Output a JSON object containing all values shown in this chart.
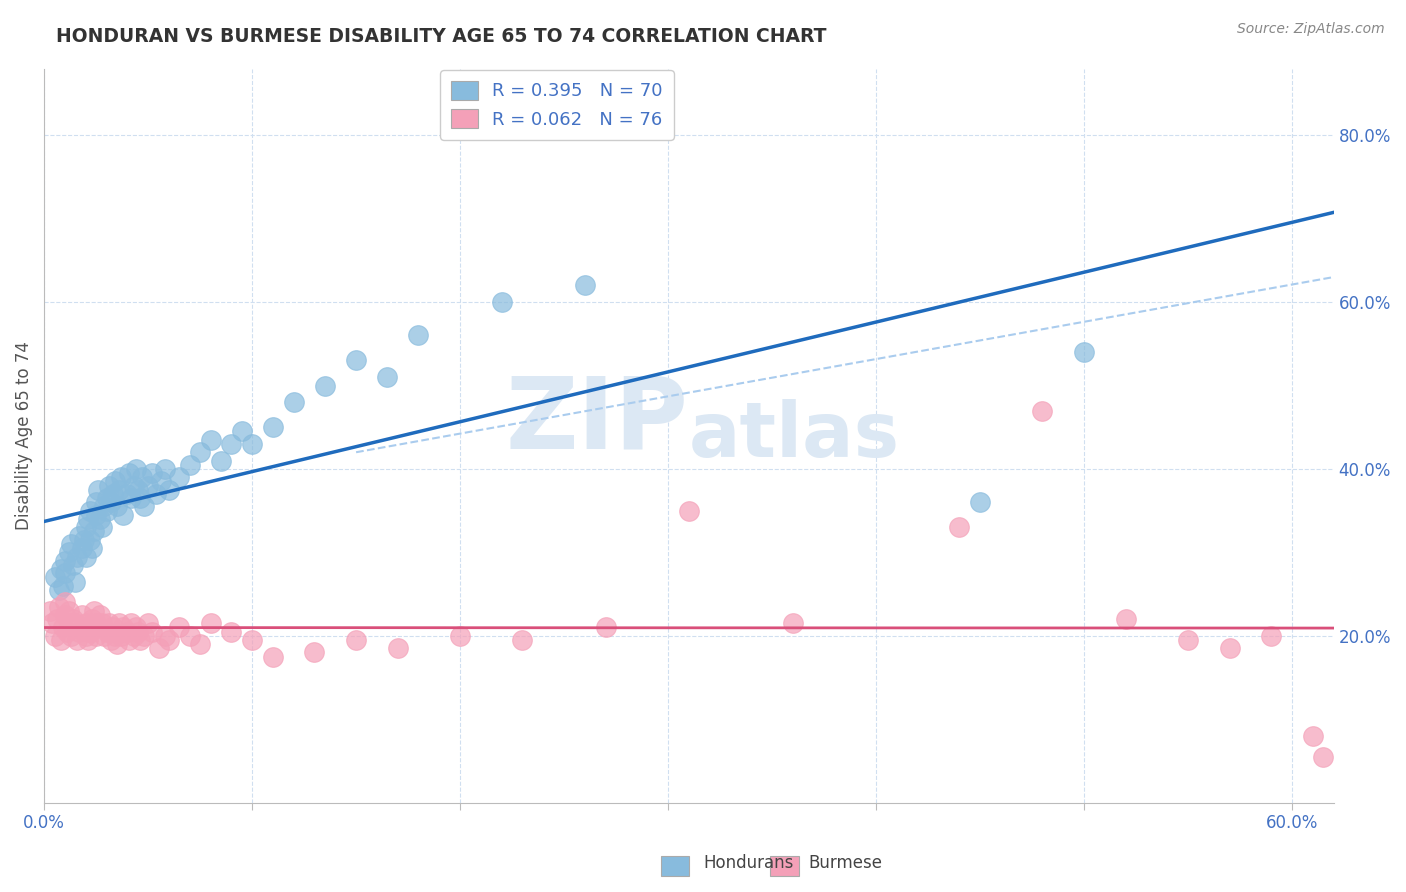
{
  "title": "HONDURAN VS BURMESE DISABILITY AGE 65 TO 74 CORRELATION CHART",
  "source_text": "Source: ZipAtlas.com",
  "ylabel": "Disability Age 65 to 74",
  "xlim": [
    0.0,
    0.62
  ],
  "ylim": [
    0.0,
    0.88
  ],
  "xticks": [
    0.0,
    0.1,
    0.2,
    0.3,
    0.4,
    0.5,
    0.6
  ],
  "yticks": [
    0.2,
    0.4,
    0.6,
    0.8
  ],
  "legend_r1": "R = 0.395",
  "legend_n1": "N = 70",
  "legend_r2": "R = 0.062",
  "legend_n2": "N = 76",
  "honduran_color": "#88bbdd",
  "burmese_color": "#f4a0b8",
  "trend_honduran_color": "#1f6bbd",
  "trend_burmese_color": "#d94f7a",
  "axis_label_color": "#4472C4",
  "grid_color": "#d0dff0",
  "background_color": "#ffffff",
  "watermark_color": "#dce8f4",
  "hondurans_scatter_x": [
    0.005,
    0.007,
    0.008,
    0.009,
    0.01,
    0.01,
    0.012,
    0.013,
    0.014,
    0.015,
    0.016,
    0.017,
    0.018,
    0.019,
    0.02,
    0.02,
    0.021,
    0.022,
    0.022,
    0.023,
    0.024,
    0.025,
    0.025,
    0.026,
    0.027,
    0.028,
    0.029,
    0.03,
    0.03,
    0.031,
    0.032,
    0.033,
    0.034,
    0.035,
    0.036,
    0.037,
    0.038,
    0.04,
    0.041,
    0.042,
    0.043,
    0.044,
    0.045,
    0.046,
    0.047,
    0.048,
    0.05,
    0.052,
    0.054,
    0.056,
    0.058,
    0.06,
    0.065,
    0.07,
    0.075,
    0.08,
    0.085,
    0.09,
    0.095,
    0.1,
    0.11,
    0.12,
    0.135,
    0.15,
    0.165,
    0.18,
    0.22,
    0.26,
    0.45,
    0.5
  ],
  "hondurans_scatter_y": [
    0.27,
    0.255,
    0.28,
    0.26,
    0.29,
    0.275,
    0.3,
    0.31,
    0.285,
    0.265,
    0.295,
    0.32,
    0.305,
    0.315,
    0.33,
    0.295,
    0.34,
    0.315,
    0.35,
    0.305,
    0.325,
    0.345,
    0.36,
    0.375,
    0.34,
    0.33,
    0.355,
    0.365,
    0.35,
    0.38,
    0.36,
    0.37,
    0.385,
    0.355,
    0.375,
    0.39,
    0.345,
    0.37,
    0.395,
    0.365,
    0.38,
    0.4,
    0.375,
    0.365,
    0.39,
    0.355,
    0.38,
    0.395,
    0.37,
    0.385,
    0.4,
    0.375,
    0.39,
    0.405,
    0.42,
    0.435,
    0.41,
    0.43,
    0.445,
    0.43,
    0.45,
    0.48,
    0.5,
    0.53,
    0.51,
    0.56,
    0.6,
    0.62,
    0.36,
    0.54
  ],
  "burmese_scatter_x": [
    0.003,
    0.004,
    0.005,
    0.006,
    0.007,
    0.008,
    0.009,
    0.01,
    0.01,
    0.011,
    0.012,
    0.012,
    0.013,
    0.014,
    0.015,
    0.016,
    0.017,
    0.018,
    0.019,
    0.02,
    0.02,
    0.021,
    0.022,
    0.023,
    0.024,
    0.025,
    0.025,
    0.026,
    0.027,
    0.028,
    0.029,
    0.03,
    0.031,
    0.032,
    0.033,
    0.034,
    0.035,
    0.036,
    0.037,
    0.038,
    0.04,
    0.041,
    0.042,
    0.043,
    0.044,
    0.045,
    0.046,
    0.048,
    0.05,
    0.052,
    0.055,
    0.058,
    0.06,
    0.065,
    0.07,
    0.075,
    0.08,
    0.09,
    0.1,
    0.11,
    0.13,
    0.15,
    0.17,
    0.2,
    0.23,
    0.27,
    0.31,
    0.36,
    0.44,
    0.48,
    0.52,
    0.55,
    0.57,
    0.59,
    0.61,
    0.615
  ],
  "burmese_scatter_y": [
    0.23,
    0.215,
    0.2,
    0.22,
    0.235,
    0.195,
    0.21,
    0.225,
    0.24,
    0.205,
    0.215,
    0.23,
    0.2,
    0.22,
    0.215,
    0.195,
    0.205,
    0.225,
    0.21,
    0.2,
    0.215,
    0.195,
    0.205,
    0.22,
    0.23,
    0.215,
    0.2,
    0.21,
    0.225,
    0.215,
    0.2,
    0.205,
    0.215,
    0.195,
    0.21,
    0.2,
    0.19,
    0.215,
    0.2,
    0.21,
    0.205,
    0.195,
    0.215,
    0.2,
    0.21,
    0.205,
    0.195,
    0.2,
    0.215,
    0.205,
    0.185,
    0.2,
    0.195,
    0.21,
    0.2,
    0.19,
    0.215,
    0.205,
    0.195,
    0.175,
    0.18,
    0.195,
    0.185,
    0.2,
    0.195,
    0.21,
    0.35,
    0.215,
    0.33,
    0.47,
    0.22,
    0.195,
    0.185,
    0.2,
    0.08,
    0.055
  ]
}
